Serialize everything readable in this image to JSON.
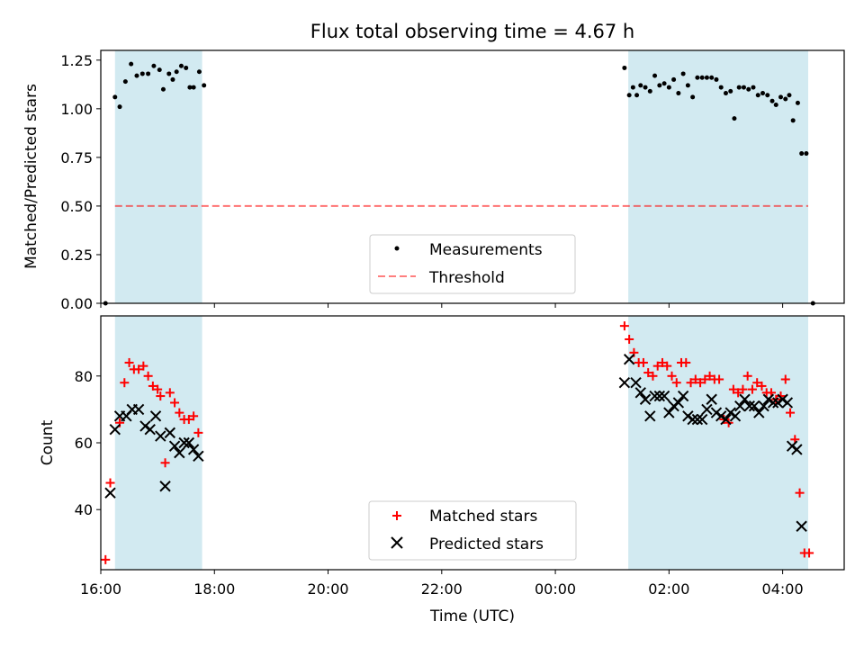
{
  "figure": {
    "title": "Flux total observing time = 4.67 h"
  },
  "chart_data": [
    {
      "type": "scatter",
      "panel": "top",
      "ylabel": "Matched/Predicted stars",
      "xlabel": "",
      "xlim": [
        "16:00",
        "05:05"
      ],
      "ylim": [
        0,
        1.3
      ],
      "yticks": [
        0.0,
        0.25,
        0.5,
        0.75,
        1.0,
        1.25
      ],
      "ytick_labels": [
        "0.00",
        "0.25",
        "0.50",
        "0.75",
        "1.00",
        "1.25"
      ],
      "shaded_intervals": [
        [
          "16:15",
          "17:47"
        ],
        [
          "01:17",
          "04:27"
        ]
      ],
      "shade_color": "#add8e6",
      "threshold": {
        "name": "Threshold",
        "value": 0.5,
        "x_range": [
          "16:15",
          "04:27"
        ],
        "color": "#ff0000",
        "style": "dashed"
      },
      "legend": {
        "position": "bottom-center",
        "entries": [
          "Measurements",
          "Threshold"
        ]
      },
      "series": [
        {
          "name": "Measurements",
          "marker": "dot",
          "color": "#000000",
          "points": [
            [
              "16:05",
              0.0
            ],
            [
              "16:15",
              1.06
            ],
            [
              "16:20",
              1.01
            ],
            [
              "16:26",
              1.14
            ],
            [
              "16:32",
              1.23
            ],
            [
              "16:38",
              1.17
            ],
            [
              "16:44",
              1.18
            ],
            [
              "16:50",
              1.18
            ],
            [
              "16:56",
              1.22
            ],
            [
              "17:02",
              1.2
            ],
            [
              "17:06",
              1.1
            ],
            [
              "17:12",
              1.18
            ],
            [
              "17:16",
              1.15
            ],
            [
              "17:20",
              1.19
            ],
            [
              "17:25",
              1.22
            ],
            [
              "17:30",
              1.21
            ],
            [
              "17:34",
              1.11
            ],
            [
              "17:38",
              1.11
            ],
            [
              "17:44",
              1.19
            ],
            [
              "17:49",
              1.12
            ],
            [
              "01:13",
              1.21
            ],
            [
              "01:18",
              1.07
            ],
            [
              "01:22",
              1.11
            ],
            [
              "01:26",
              1.07
            ],
            [
              "01:30",
              1.12
            ],
            [
              "01:35",
              1.11
            ],
            [
              "01:40",
              1.09
            ],
            [
              "01:45",
              1.17
            ],
            [
              "01:50",
              1.12
            ],
            [
              "01:55",
              1.13
            ],
            [
              "02:00",
              1.11
            ],
            [
              "02:05",
              1.15
            ],
            [
              "02:10",
              1.08
            ],
            [
              "02:15",
              1.18
            ],
            [
              "02:20",
              1.12
            ],
            [
              "02:25",
              1.06
            ],
            [
              "02:30",
              1.16
            ],
            [
              "02:35",
              1.16
            ],
            [
              "02:40",
              1.16
            ],
            [
              "02:45",
              1.16
            ],
            [
              "02:50",
              1.15
            ],
            [
              "02:55",
              1.11
            ],
            [
              "03:00",
              1.08
            ],
            [
              "03:05",
              1.09
            ],
            [
              "03:09",
              0.95
            ],
            [
              "03:14",
              1.11
            ],
            [
              "03:19",
              1.11
            ],
            [
              "03:24",
              1.1
            ],
            [
              "03:29",
              1.11
            ],
            [
              "03:34",
              1.07
            ],
            [
              "03:39",
              1.08
            ],
            [
              "03:44",
              1.07
            ],
            [
              "03:49",
              1.04
            ],
            [
              "03:53",
              1.02
            ],
            [
              "03:58",
              1.06
            ],
            [
              "04:03",
              1.05
            ],
            [
              "04:07",
              1.07
            ],
            [
              "04:11",
              0.94
            ],
            [
              "04:16",
              1.03
            ],
            [
              "04:20",
              0.77
            ],
            [
              "04:25",
              0.77
            ],
            [
              "04:32",
              0.0
            ]
          ]
        }
      ]
    },
    {
      "type": "scatter",
      "panel": "bottom",
      "ylabel": "Count",
      "xlabel": "Time (UTC)",
      "xlim": [
        "16:00",
        "05:05"
      ],
      "ylim": [
        22,
        98
      ],
      "yticks": [
        40,
        60,
        80
      ],
      "ytick_labels": [
        "40",
        "60",
        "80"
      ],
      "xticks": [
        "16:00",
        "18:00",
        "20:00",
        "22:00",
        "00:00",
        "02:00",
        "04:00"
      ],
      "xtick_labels": [
        "16:00",
        "18:00",
        "20:00",
        "22:00",
        "00:00",
        "02:00",
        "04:00"
      ],
      "shaded_intervals": [
        [
          "16:15",
          "17:47"
        ],
        [
          "01:17",
          "04:27"
        ]
      ],
      "shade_color": "#add8e6",
      "legend": {
        "position": "bottom-center",
        "entries": [
          "Matched stars",
          "Predicted stars"
        ]
      },
      "series": [
        {
          "name": "Matched stars",
          "marker": "plus",
          "color": "#ff0000",
          "points": [
            [
              "16:05",
              25
            ],
            [
              "16:10",
              48
            ],
            [
              "16:20",
              66
            ],
            [
              "16:25",
              78
            ],
            [
              "16:30",
              84
            ],
            [
              "16:35",
              82
            ],
            [
              "16:40",
              82
            ],
            [
              "16:45",
              83
            ],
            [
              "16:50",
              80
            ],
            [
              "16:55",
              77
            ],
            [
              "17:00",
              76
            ],
            [
              "17:03",
              74
            ],
            [
              "17:08",
              54
            ],
            [
              "17:13",
              75
            ],
            [
              "17:18",
              72
            ],
            [
              "17:23",
              69
            ],
            [
              "17:28",
              67
            ],
            [
              "17:33",
              67
            ],
            [
              "17:38",
              68
            ],
            [
              "17:43",
              63
            ],
            [
              "01:13",
              95
            ],
            [
              "01:18",
              91
            ],
            [
              "01:23",
              87
            ],
            [
              "01:28",
              84
            ],
            [
              "01:33",
              84
            ],
            [
              "01:38",
              81
            ],
            [
              "01:43",
              80
            ],
            [
              "01:48",
              83
            ],
            [
              "01:53",
              84
            ],
            [
              "01:58",
              83
            ],
            [
              "02:03",
              80
            ],
            [
              "02:08",
              78
            ],
            [
              "02:13",
              84
            ],
            [
              "02:18",
              84
            ],
            [
              "02:23",
              78
            ],
            [
              "02:28",
              79
            ],
            [
              "02:33",
              78
            ],
            [
              "02:38",
              79
            ],
            [
              "02:43",
              80
            ],
            [
              "02:48",
              79
            ],
            [
              "02:53",
              79
            ],
            [
              "02:58",
              67
            ],
            [
              "03:03",
              66
            ],
            [
              "03:08",
              76
            ],
            [
              "03:13",
              75
            ],
            [
              "03:18",
              76
            ],
            [
              "03:23",
              80
            ],
            [
              "03:28",
              76
            ],
            [
              "03:33",
              78
            ],
            [
              "03:38",
              77
            ],
            [
              "03:43",
              75
            ],
            [
              "03:48",
              75
            ],
            [
              "03:53",
              73
            ],
            [
              "03:58",
              74
            ],
            [
              "04:03",
              79
            ],
            [
              "04:08",
              69
            ],
            [
              "04:13",
              61
            ],
            [
              "04:18",
              45
            ],
            [
              "04:23",
              27
            ],
            [
              "04:28",
              27
            ]
          ]
        },
        {
          "name": "Predicted stars",
          "marker": "x",
          "color": "#000000",
          "points": [
            [
              "16:10",
              45
            ],
            [
              "16:15",
              64
            ],
            [
              "16:20",
              68
            ],
            [
              "16:27",
              68
            ],
            [
              "16:33",
              70
            ],
            [
              "16:40",
              70
            ],
            [
              "16:47",
              65
            ],
            [
              "16:52",
              64
            ],
            [
              "16:58",
              68
            ],
            [
              "17:03",
              62
            ],
            [
              "17:08",
              47
            ],
            [
              "17:13",
              63
            ],
            [
              "17:18",
              59
            ],
            [
              "17:23",
              57
            ],
            [
              "17:28",
              60
            ],
            [
              "17:33",
              60
            ],
            [
              "17:38",
              58
            ],
            [
              "17:43",
              56
            ],
            [
              "01:13",
              78
            ],
            [
              "01:18",
              85
            ],
            [
              "01:25",
              78
            ],
            [
              "01:30",
              75
            ],
            [
              "01:35",
              73
            ],
            [
              "01:40",
              68
            ],
            [
              "01:45",
              74
            ],
            [
              "01:50",
              74
            ],
            [
              "01:55",
              74
            ],
            [
              "02:00",
              69
            ],
            [
              "02:05",
              71
            ],
            [
              "02:10",
              72
            ],
            [
              "02:15",
              74
            ],
            [
              "02:20",
              68
            ],
            [
              "02:25",
              67
            ],
            [
              "02:30",
              67
            ],
            [
              "02:35",
              67
            ],
            [
              "02:40",
              70
            ],
            [
              "02:45",
              73
            ],
            [
              "02:50",
              69
            ],
            [
              "02:55",
              68
            ],
            [
              "03:00",
              67
            ],
            [
              "03:05",
              69
            ],
            [
              "03:10",
              68
            ],
            [
              "03:15",
              71
            ],
            [
              "03:20",
              73
            ],
            [
              "03:25",
              71
            ],
            [
              "03:30",
              71
            ],
            [
              "03:35",
              69
            ],
            [
              "03:40",
              71
            ],
            [
              "03:45",
              73
            ],
            [
              "03:50",
              72
            ],
            [
              "03:55",
              72
            ],
            [
              "04:00",
              73
            ],
            [
              "04:05",
              72
            ],
            [
              "04:10",
              59
            ],
            [
              "04:15",
              58
            ],
            [
              "04:20",
              35
            ]
          ]
        }
      ]
    }
  ]
}
